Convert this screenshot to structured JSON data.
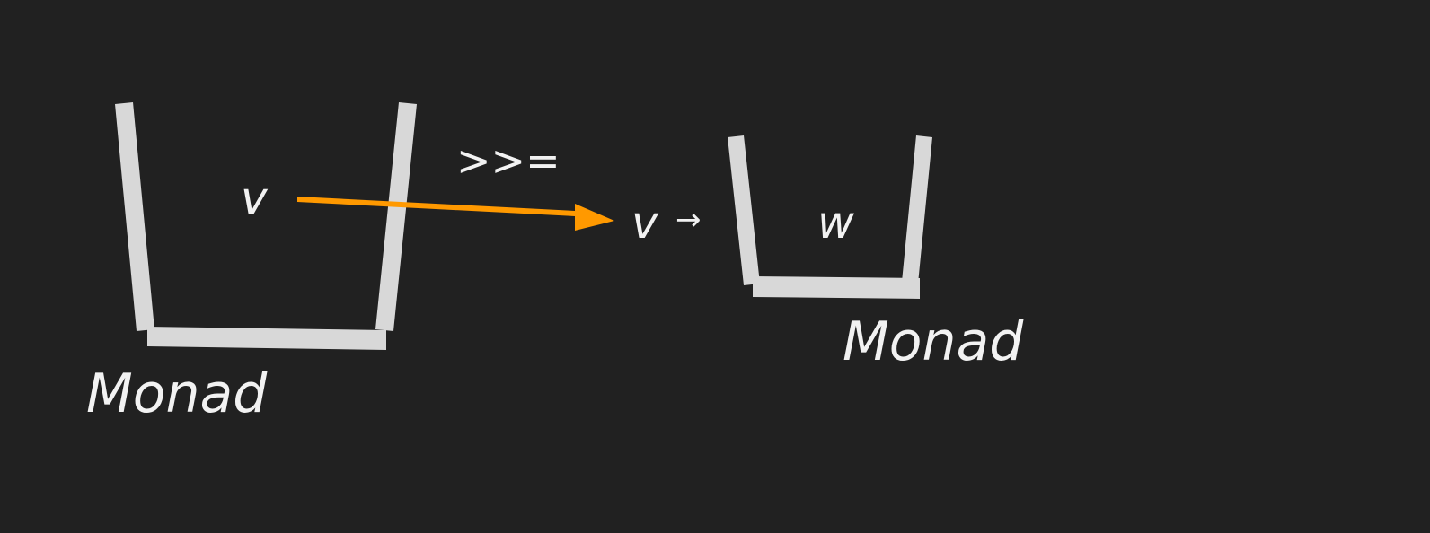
{
  "left_monad": {
    "caption": "Monad",
    "value": "v"
  },
  "bind_operator": ">>=",
  "function": {
    "param": "v",
    "arrow": "→"
  },
  "right_monad": {
    "caption": "Monad",
    "value": "w"
  },
  "colors": {
    "background": "#212121",
    "container": "#d8d8d8",
    "text": "#f2f2f2",
    "arrow": "#ff9900"
  }
}
